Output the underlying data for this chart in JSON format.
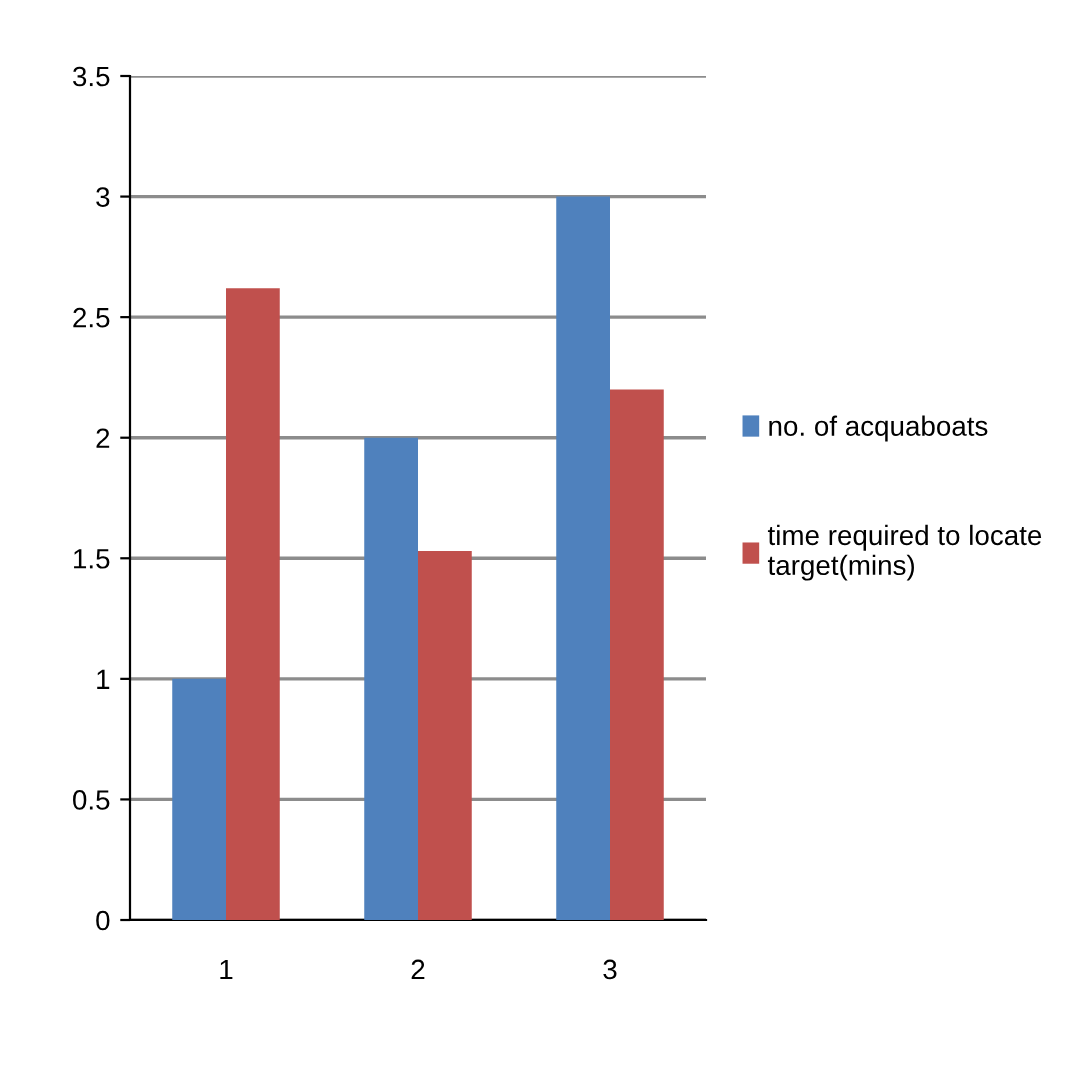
{
  "chart_data": {
    "type": "bar",
    "categories": [
      "1",
      "2",
      "3"
    ],
    "series": [
      {
        "name": "no. of acquaboats",
        "color": "#4f81bd",
        "values": [
          1,
          2,
          3
        ]
      },
      {
        "name": "time required to locate\ntarget(mins)",
        "color": "#c0504d",
        "values": [
          2.62,
          1.53,
          2.2
        ]
      }
    ],
    "ylim": [
      0,
      3.5
    ],
    "yticks": [
      0,
      0.5,
      1,
      1.5,
      2,
      2.5,
      3,
      3.5
    ],
    "grid": "y",
    "legend": "right"
  }
}
